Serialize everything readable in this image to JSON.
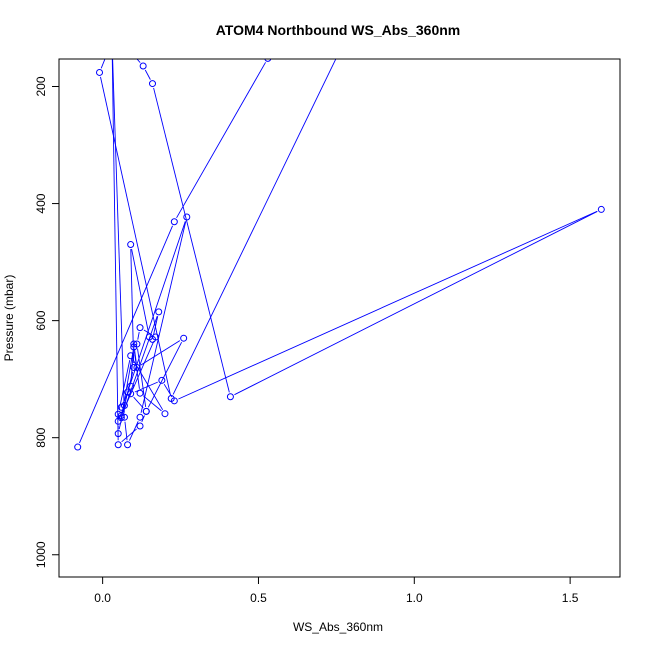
{
  "chart_data": {
    "type": "line",
    "title": "ATOM4 Northbound WS_Abs_360nm",
    "xlabel": "WS_Abs_360nm",
    "ylabel": "Pressure (mbar)",
    "xlim": [
      -0.14,
      1.66
    ],
    "ylim": [
      1038,
      153
    ],
    "y_reversed": true,
    "xticks": [
      0.0,
      0.5,
      1.0,
      1.5
    ],
    "xtick_labels": [
      "0.0",
      "0.5",
      "1.0",
      "1.5"
    ],
    "yticks": [
      200,
      400,
      600,
      800,
      1000
    ],
    "ytick_labels": [
      "200",
      "400",
      "600",
      "800",
      "1000"
    ],
    "grid": false,
    "legend": "none",
    "colors": {
      "series": "#0000ff",
      "frame": "#000000"
    },
    "series": [
      {
        "marker": "open-circle",
        "x": [
          -0.08,
          0.23,
          0.53,
          0.76,
          0.22,
          -0.01,
          0.04,
          0.13,
          0.16,
          0.41,
          1.6,
          0.23,
          0.19,
          0.09,
          0.14,
          0.12,
          0.05,
          0.03,
          0.07,
          0.08,
          0.12,
          0.27,
          0.08,
          0.05,
          0.05,
          0.07,
          0.1,
          0.09,
          0.15,
          0.16,
          0.18,
          0.06,
          0.1,
          0.12,
          0.2,
          0.09,
          0.05,
          0.06,
          0.09,
          0.1,
          0.11,
          0.26,
          0.14,
          0.11,
          0.12,
          0.17,
          0.06
        ],
        "y": [
          816,
          431,
          152,
          140,
          733,
          176,
          110,
          165,
          195,
          730,
          410,
          737,
          702,
          725,
          755,
          780,
          812,
          120,
          765,
          812,
          765,
          423,
          722,
          793,
          772,
          745,
          680,
          470,
          628,
          632,
          585,
          766,
          645,
          724,
          759,
          660,
          760,
          748,
          712,
          640,
          680,
          630,
          755,
          640,
          612,
          628,
          762
        ]
      }
    ]
  }
}
